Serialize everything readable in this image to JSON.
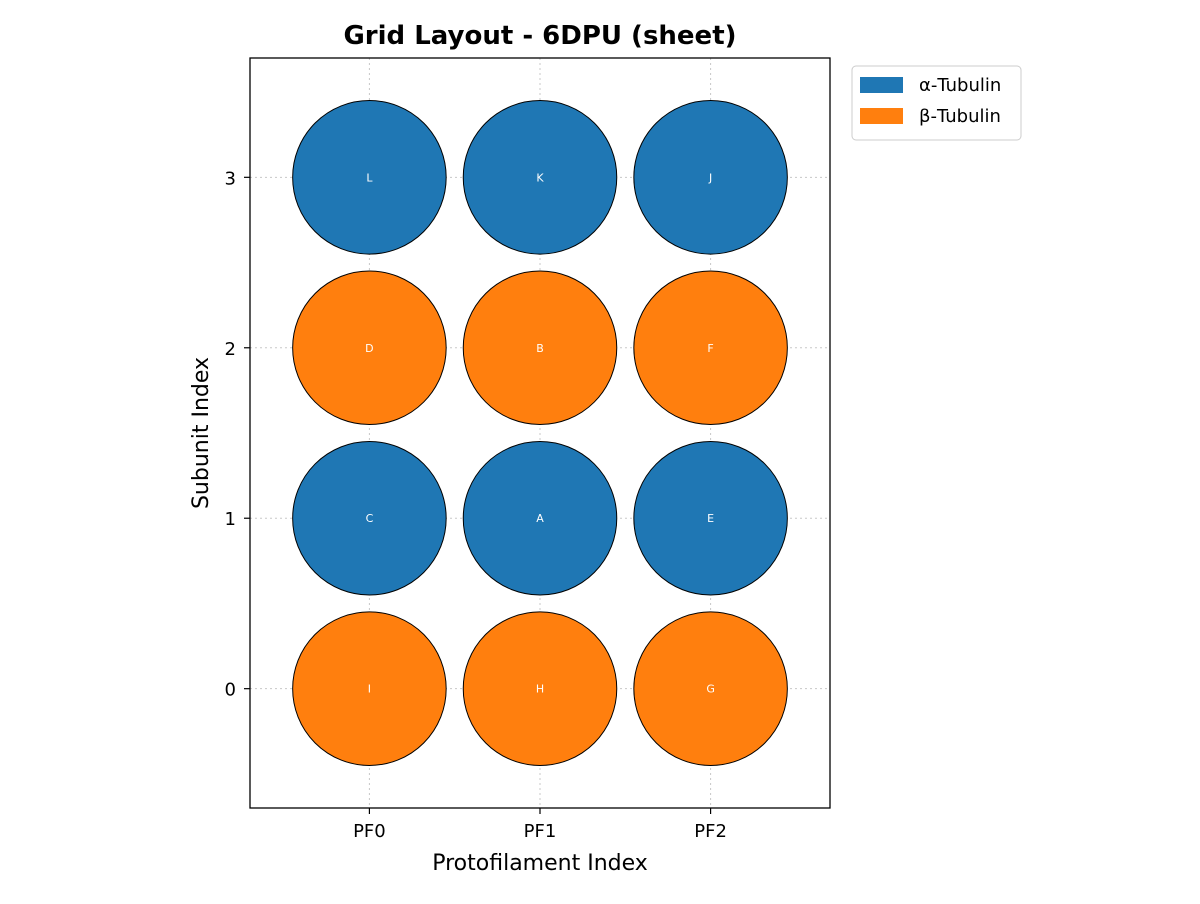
{
  "chart_data": {
    "type": "scatter",
    "title": "Grid Layout - 6DPU (sheet)",
    "xlabel": "Protofilament Index",
    "ylabel": "Subunit Index",
    "x_ticks": [
      {
        "value": 0,
        "label": "PF0"
      },
      {
        "value": 1,
        "label": "PF1"
      },
      {
        "value": 2,
        "label": "PF2"
      }
    ],
    "y_ticks": [
      {
        "value": 0,
        "label": "0"
      },
      {
        "value": 1,
        "label": "1"
      },
      {
        "value": 2,
        "label": "2"
      },
      {
        "value": 3,
        "label": "3"
      }
    ],
    "xlim": [
      -0.7,
      2.7
    ],
    "ylim": [
      3.7,
      -0.7
    ],
    "y_inverted": true,
    "grid": true,
    "legend_position": "outside-top-right",
    "marker_radius": 0.45,
    "series": [
      {
        "name": "α-Tubulin",
        "color": "#1f77b4",
        "points": [
          {
            "x": 0,
            "y": 1,
            "label": "C"
          },
          {
            "x": 1,
            "y": 1,
            "label": "A"
          },
          {
            "x": 2,
            "y": 1,
            "label": "E"
          },
          {
            "x": 0,
            "y": 3,
            "label": "L"
          },
          {
            "x": 1,
            "y": 3,
            "label": "K"
          },
          {
            "x": 2,
            "y": 3,
            "label": "J"
          }
        ]
      },
      {
        "name": "β-Tubulin",
        "color": "#ff7f0e",
        "points": [
          {
            "x": 0,
            "y": 0,
            "label": "I"
          },
          {
            "x": 1,
            "y": 0,
            "label": "H"
          },
          {
            "x": 2,
            "y": 0,
            "label": "G"
          },
          {
            "x": 0,
            "y": 2,
            "label": "D"
          },
          {
            "x": 1,
            "y": 2,
            "label": "B"
          },
          {
            "x": 2,
            "y": 2,
            "label": "F"
          }
        ]
      }
    ]
  }
}
